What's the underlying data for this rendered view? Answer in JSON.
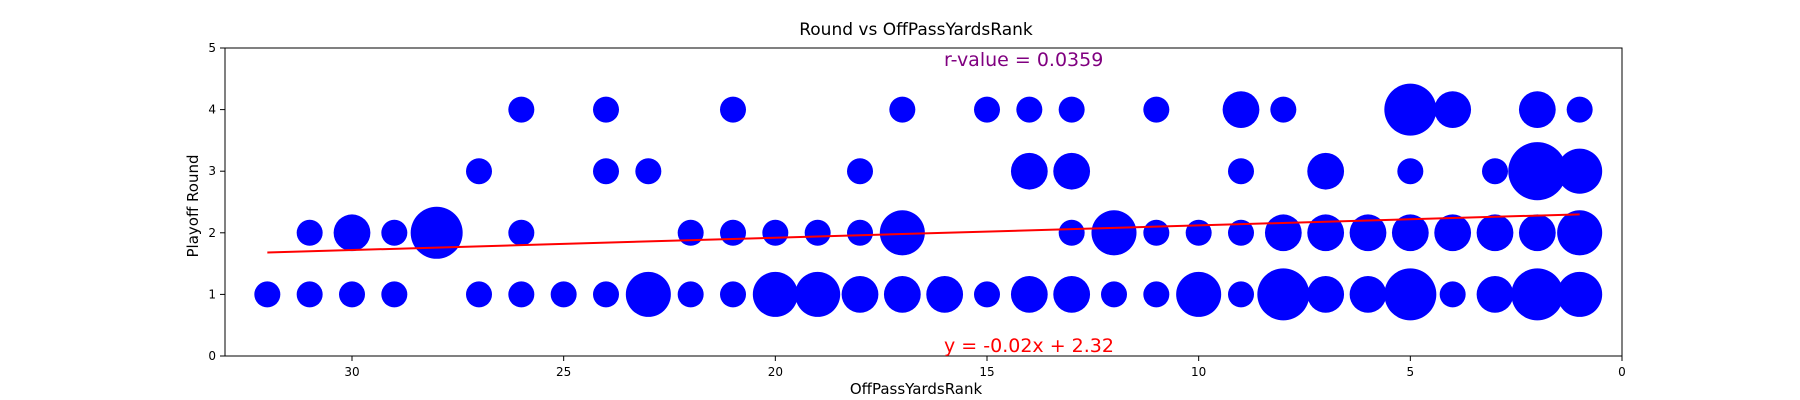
{
  "chart_data": {
    "type": "scatter",
    "title": "Round vs OffPassYardsRank",
    "xlabel": "OffPassYardsRank",
    "ylabel": "Playoff Round",
    "xlim": [
      33,
      0
    ],
    "ylim": [
      0,
      5
    ],
    "x_inverted": true,
    "x_ticks": [
      30,
      25,
      20,
      15,
      10,
      5,
      0
    ],
    "y_ticks": [
      0,
      1,
      2,
      3,
      4,
      5
    ],
    "grid": false,
    "point_color": "#0000ff",
    "size_encoding": "marker area proportional to count of teams at each point",
    "points": [
      {
        "x": 32,
        "y": 1,
        "count": 1
      },
      {
        "x": 31,
        "y": 1,
        "count": 1
      },
      {
        "x": 30,
        "y": 1,
        "count": 1
      },
      {
        "x": 29,
        "y": 1,
        "count": 1
      },
      {
        "x": 27,
        "y": 1,
        "count": 1
      },
      {
        "x": 26,
        "y": 1,
        "count": 1
      },
      {
        "x": 25,
        "y": 1,
        "count": 1
      },
      {
        "x": 24,
        "y": 1,
        "count": 1
      },
      {
        "x": 23,
        "y": 1,
        "count": 3
      },
      {
        "x": 22,
        "y": 1,
        "count": 1
      },
      {
        "x": 21,
        "y": 1,
        "count": 1
      },
      {
        "x": 20,
        "y": 1,
        "count": 3
      },
      {
        "x": 19,
        "y": 1,
        "count": 3
      },
      {
        "x": 18,
        "y": 1,
        "count": 2
      },
      {
        "x": 17,
        "y": 1,
        "count": 2
      },
      {
        "x": 16,
        "y": 1,
        "count": 2
      },
      {
        "x": 15,
        "y": 1,
        "count": 1
      },
      {
        "x": 14,
        "y": 1,
        "count": 2
      },
      {
        "x": 13,
        "y": 1,
        "count": 2
      },
      {
        "x": 12,
        "y": 1,
        "count": 1
      },
      {
        "x": 11,
        "y": 1,
        "count": 1
      },
      {
        "x": 10,
        "y": 1,
        "count": 3
      },
      {
        "x": 9,
        "y": 1,
        "count": 1
      },
      {
        "x": 8,
        "y": 1,
        "count": 4
      },
      {
        "x": 7,
        "y": 1,
        "count": 2
      },
      {
        "x": 6,
        "y": 1,
        "count": 2
      },
      {
        "x": 5,
        "y": 1,
        "count": 4
      },
      {
        "x": 4,
        "y": 1,
        "count": 1
      },
      {
        "x": 3,
        "y": 1,
        "count": 2
      },
      {
        "x": 2,
        "y": 1,
        "count": 4
      },
      {
        "x": 1,
        "y": 1,
        "count": 3
      },
      {
        "x": 31,
        "y": 2,
        "count": 1
      },
      {
        "x": 30,
        "y": 2,
        "count": 2
      },
      {
        "x": 29,
        "y": 2,
        "count": 1
      },
      {
        "x": 28,
        "y": 2,
        "count": 4
      },
      {
        "x": 26,
        "y": 2,
        "count": 1
      },
      {
        "x": 22,
        "y": 2,
        "count": 1
      },
      {
        "x": 21,
        "y": 2,
        "count": 1
      },
      {
        "x": 20,
        "y": 2,
        "count": 1
      },
      {
        "x": 19,
        "y": 2,
        "count": 1
      },
      {
        "x": 18,
        "y": 2,
        "count": 1
      },
      {
        "x": 17,
        "y": 2,
        "count": 3
      },
      {
        "x": 13,
        "y": 2,
        "count": 1
      },
      {
        "x": 12,
        "y": 2,
        "count": 3
      },
      {
        "x": 11,
        "y": 2,
        "count": 1
      },
      {
        "x": 10,
        "y": 2,
        "count": 1
      },
      {
        "x": 9,
        "y": 2,
        "count": 1
      },
      {
        "x": 8,
        "y": 2,
        "count": 2
      },
      {
        "x": 7,
        "y": 2,
        "count": 2
      },
      {
        "x": 6,
        "y": 2,
        "count": 2
      },
      {
        "x": 5,
        "y": 2,
        "count": 2
      },
      {
        "x": 4,
        "y": 2,
        "count": 2
      },
      {
        "x": 3,
        "y": 2,
        "count": 2
      },
      {
        "x": 2,
        "y": 2,
        "count": 2
      },
      {
        "x": 1,
        "y": 2,
        "count": 3
      },
      {
        "x": 27,
        "y": 3,
        "count": 1
      },
      {
        "x": 24,
        "y": 3,
        "count": 1
      },
      {
        "x": 23,
        "y": 3,
        "count": 1
      },
      {
        "x": 18,
        "y": 3,
        "count": 1
      },
      {
        "x": 14,
        "y": 3,
        "count": 2
      },
      {
        "x": 13,
        "y": 3,
        "count": 2
      },
      {
        "x": 9,
        "y": 3,
        "count": 1
      },
      {
        "x": 7,
        "y": 3,
        "count": 2
      },
      {
        "x": 5,
        "y": 3,
        "count": 1
      },
      {
        "x": 3,
        "y": 3,
        "count": 1
      },
      {
        "x": 2,
        "y": 3,
        "count": 5
      },
      {
        "x": 1,
        "y": 3,
        "count": 3
      },
      {
        "x": 26,
        "y": 4,
        "count": 1
      },
      {
        "x": 24,
        "y": 4,
        "count": 1
      },
      {
        "x": 21,
        "y": 4,
        "count": 1
      },
      {
        "x": 17,
        "y": 4,
        "count": 1
      },
      {
        "x": 15,
        "y": 4,
        "count": 1
      },
      {
        "x": 14,
        "y": 4,
        "count": 1
      },
      {
        "x": 13,
        "y": 4,
        "count": 1
      },
      {
        "x": 11,
        "y": 4,
        "count": 1
      },
      {
        "x": 9,
        "y": 4,
        "count": 2
      },
      {
        "x": 8,
        "y": 4,
        "count": 1
      },
      {
        "x": 5,
        "y": 4,
        "count": 4
      },
      {
        "x": 4,
        "y": 4,
        "count": 2
      },
      {
        "x": 2,
        "y": 4,
        "count": 2
      },
      {
        "x": 1,
        "y": 4,
        "count": 1
      }
    ],
    "regression": {
      "slope": -0.02,
      "intercept": 2.32,
      "x_range": [
        32,
        1
      ],
      "color": "#ff0000",
      "equation_label": "y = -0.02x + 2.32"
    },
    "r_value_label": "r-value = 0.0359",
    "r_value_color": "#800080"
  }
}
